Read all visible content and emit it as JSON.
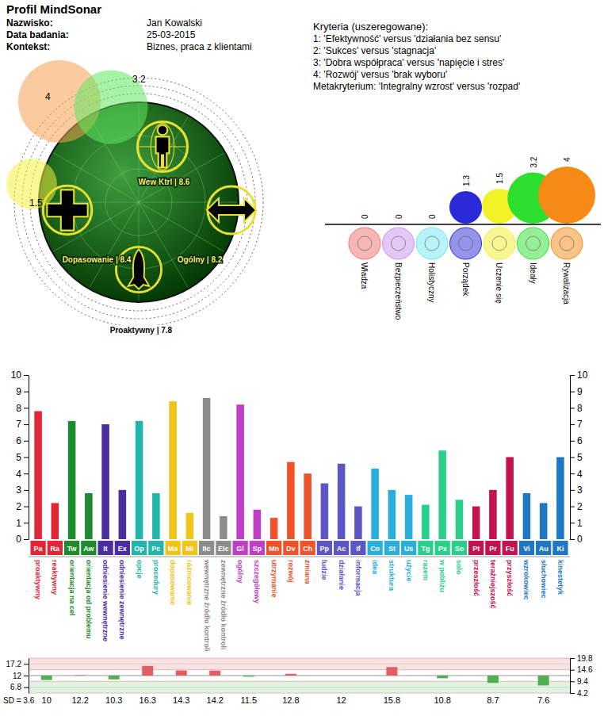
{
  "header": {
    "title": "Profil MindSonar",
    "fields": [
      {
        "label": "Nazwisko:",
        "value": "Jan Kowalski"
      },
      {
        "label": "Data badania:",
        "value": "25-03-2015"
      },
      {
        "label": "Kontekst:",
        "value": "Biznes, praca z klientami"
      }
    ]
  },
  "criteria": {
    "title": "Kryteria (uszeregowane):",
    "items": [
      "1: 'Efektywność' versus 'działania bez sensu'",
      "2: 'Sukces' versus 'stagnacja'",
      "3: 'Dobra współpraca' versus 'napięcie i stres'",
      "4: 'Rozwój' versus 'brak wyboru'"
    ],
    "meta": "Metakryterium: 'Integralny wzrost' versus 'rozpad'"
  },
  "chart_data": [
    {
      "type": "icon",
      "values": [
        8.6,
        8.4,
        8.2,
        7.8
      ],
      "value_labels": [
        "Wew Ktrl | 8.6",
        "Dopasowanie | 8.4",
        "Ogólny | 8.2",
        "Proaktywny | 7.8"
      ],
      "bubbles": {
        "values": [
          4,
          3.2,
          1.5
        ],
        "colors": [
          "#f5a050",
          "#60e860",
          "#f2f240"
        ]
      }
    },
    {
      "type": "bubble",
      "categories": [
        "Władza",
        "Bezpieczeństwo",
        "Holistyczny",
        "Porządek",
        "Uczenie się",
        "Ideały",
        "Rywalizacja"
      ],
      "values": [
        0,
        0,
        0,
        1.3,
        1.5,
        3.2,
        4
      ],
      "colors": [
        "#f07070",
        "#c890f0",
        "#70e8f0",
        "#2a2ad8",
        "#f2f226",
        "#2ee02e",
        "#f58a14"
      ],
      "data_labels": true
    },
    {
      "type": "bar",
      "categories": [
        "Pa",
        "Ra",
        "Tw",
        "Aw",
        "It",
        "Ex",
        "Op",
        "Pc",
        "Ma",
        "Mi",
        "IIc",
        "EIc",
        "Gl",
        "Sp",
        "Mn",
        "Dv",
        "Ch",
        "Pp",
        "Ac",
        "If",
        "Co",
        "St",
        "Us",
        "Tg",
        "Px",
        "So",
        "Pt",
        "Pr",
        "Fu",
        "Vi",
        "Au",
        "Ki"
      ],
      "category_names": [
        "proaktywny",
        "reaktywny",
        "orientacja na cel",
        "orientacja od problemu",
        "odniesienie wewnętrzne",
        "odniesienie zewnętrzne",
        "opcje",
        "procedury",
        "dopasowanie",
        "różnicowanie",
        "wewnętrzne źródło kontroli",
        "zewnętrzne źródło kontroli",
        "ogólny",
        "szczegółowy",
        "utrzymanie",
        "rozwój",
        "zmiana",
        "ludzie",
        "działanie",
        "informacja",
        "idea",
        "struktura",
        "użycie",
        "razem",
        "w pobliżu",
        "solo",
        "przeszłość",
        "teraźniejszość",
        "przyszłość",
        "wzrokowiec",
        "słuchowiec",
        "kinestetyk"
      ],
      "values": [
        7.8,
        2.2,
        7.2,
        2.8,
        7,
        3,
        7.2,
        2.8,
        8.4,
        1.6,
        8.6,
        1.4,
        8.2,
        1.8,
        1.3,
        4.7,
        4,
        3.4,
        4.6,
        2,
        4.3,
        3,
        2.7,
        2.1,
        5.4,
        2.4,
        2,
        3,
        5,
        2.8,
        2.2,
        5
      ],
      "colors": [
        "#e32636",
        "#e32636",
        "#1e8c2e",
        "#1e8c2e",
        "#4b2d9f",
        "#4b2d9f",
        "#22b5ac",
        "#22b5ac",
        "#f0c419",
        "#f0c419",
        "#8c8c8c",
        "#8c8c8c",
        "#c13fc6",
        "#c13fc6",
        "#f0522a",
        "#f0522a",
        "#f0522a",
        "#5b56c4",
        "#5b56c4",
        "#5b56c4",
        "#2aaedb",
        "#2aaedb",
        "#2aaedb",
        "#2bcf8c",
        "#2bcf8c",
        "#2bcf8c",
        "#c2124f",
        "#c2124f",
        "#c2124f",
        "#1f77c4",
        "#1f77c4",
        "#1f77c4"
      ],
      "ylim": [
        0,
        10
      ],
      "yticks": [
        0,
        1,
        2,
        3,
        4,
        5,
        6,
        7,
        8,
        9,
        10
      ],
      "y2lim": [
        0,
        10
      ],
      "y2ticks": [
        0,
        1,
        2,
        3,
        4,
        5,
        6,
        7,
        8,
        9,
        10
      ]
    },
    {
      "type": "bar",
      "categories": [
        null,
        null,
        null,
        null,
        null,
        null,
        null,
        null,
        null,
        null,
        null,
        null,
        null
      ],
      "values": [
        10,
        12.2,
        10.3,
        16.3,
        14.3,
        14.2,
        11.5,
        12.8,
        12,
        15.8,
        10.8,
        8.7,
        7.6
      ],
      "colors": [
        "#50b050",
        "#e06060",
        "#50b050",
        "#e06060",
        "#e06060",
        "#e06060",
        "#50b050",
        "#e06060",
        "#50b050",
        "#e06060",
        "#50b050",
        "#50b050",
        "#50b050"
      ],
      "baseline": 12,
      "ylim": [
        4.2,
        19.8
      ],
      "yticks": [
        17.2,
        12,
        6.8
      ],
      "y2lim": [
        4.2,
        19.8
      ],
      "y2ticks": [
        19.8,
        14.6,
        9.4,
        4.2
      ],
      "data_labels": true,
      "annotation": "SD = 3.6"
    }
  ]
}
